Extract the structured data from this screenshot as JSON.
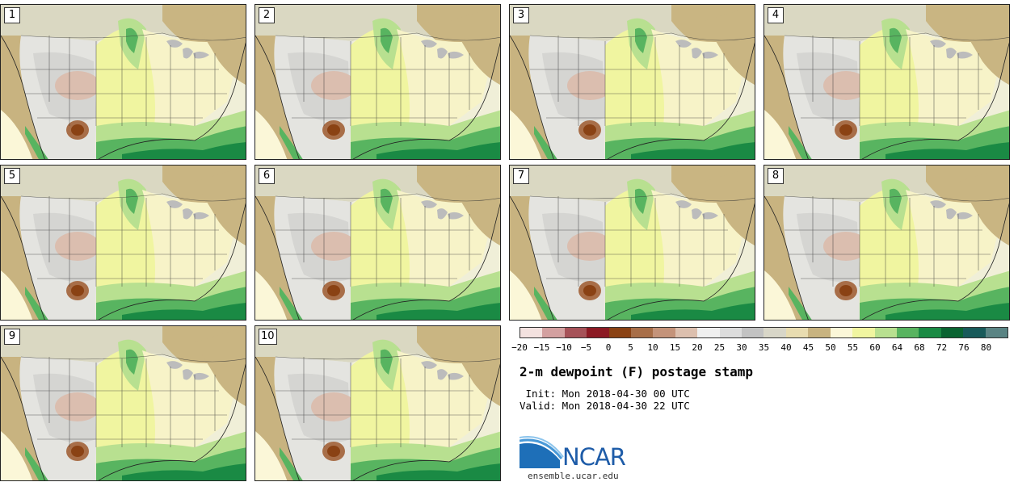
{
  "panels": [
    {
      "label": "1"
    },
    {
      "label": "2"
    },
    {
      "label": "3"
    },
    {
      "label": "4"
    },
    {
      "label": "5"
    },
    {
      "label": "6"
    },
    {
      "label": "7"
    },
    {
      "label": "8"
    },
    {
      "label": "9"
    },
    {
      "label": "10"
    }
  ],
  "colorbar": {
    "ticks": [
      "−20",
      "−15",
      "−10",
      "−5",
      "0",
      "5",
      "10",
      "15",
      "20",
      "25",
      "30",
      "35",
      "40",
      "45",
      "50",
      "55",
      "60",
      "64",
      "68",
      "72",
      "76",
      "80"
    ],
    "colors": [
      "#f3e1df",
      "#d3a0a0",
      "#a65258",
      "#8c1a24",
      "#8a4214",
      "#a86e48",
      "#c4937a",
      "#dcbfae",
      "#efefef",
      "#dcdcdc",
      "#c2c2c2",
      "#d8d6c8",
      "#e8dcb0",
      "#c8b380",
      "#fbf7d8",
      "#f0f5a0",
      "#b8e090",
      "#58b460",
      "#1a8a44",
      "#0a6432",
      "#185a5a",
      "#5a8484"
    ]
  },
  "legend": {
    "title": "2-m dewpoint (F) postage stamp",
    "init": " Init: Mon 2018-04-30 00 UTC",
    "valid": "Valid: Mon 2018-04-30 22 UTC"
  },
  "logo": {
    "text": "NCAR",
    "url": "ensemble.ucar.edu"
  },
  "icons": {
    "logo_mark": "ncar-swoosh-icon"
  }
}
